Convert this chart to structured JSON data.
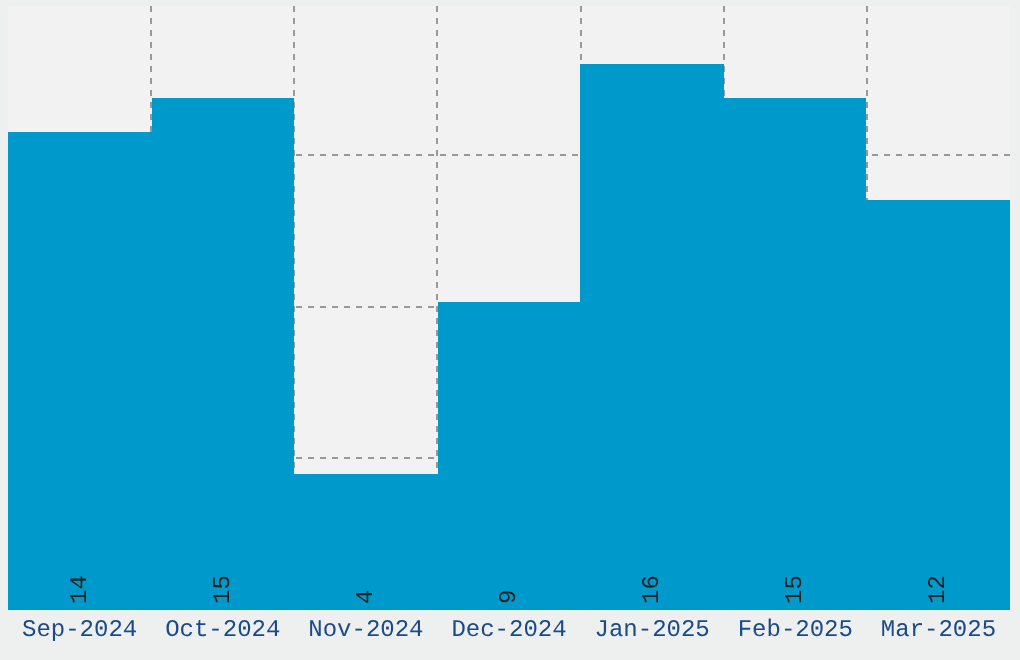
{
  "chart_data": {
    "type": "bar",
    "categories": [
      "Sep-2024",
      "Oct-2024",
      "Nov-2024",
      "Dec-2024",
      "Jan-2025",
      "Feb-2025",
      "Mar-2025"
    ],
    "values": [
      14,
      15,
      4,
      9,
      16,
      15,
      12
    ],
    "color": "#0099cc",
    "ylim": [
      0,
      17.7
    ],
    "yticks": [
      {
        "value": 4.44,
        "label": null
      },
      {
        "value": 8.88,
        "label": null
      },
      {
        "value": 13.32,
        "label": null
      }
    ],
    "tick_labels": "x",
    "grid": true,
    "data_labels": true
  }
}
